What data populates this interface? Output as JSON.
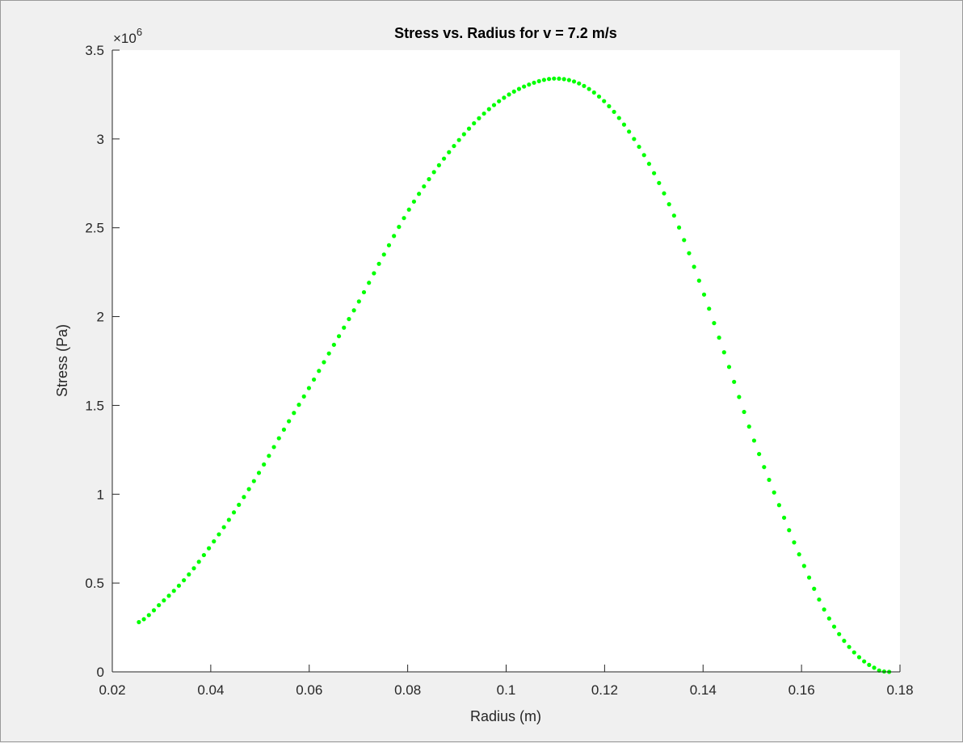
{
  "chart_data": {
    "type": "scatter",
    "title": "Stress vs. Radius for v = 7.2 m/s",
    "xlabel": "Radius (m)",
    "ylabel": "Stress (Pa)",
    "xlim": [
      0.02,
      0.18
    ],
    "ylim": [
      0,
      3.5
    ],
    "y_multiplier_label": "×10",
    "y_multiplier_exponent": "6",
    "x_ticks": [
      "0.02",
      "0.04",
      "0.06",
      "0.08",
      "0.1",
      "0.12",
      "0.14",
      "0.16",
      "0.18"
    ],
    "y_ticks": [
      "0",
      "0.5",
      "1",
      "1.5",
      "2",
      "2.5",
      "3",
      "3.5"
    ],
    "x_tick_values": [
      0.02,
      0.04,
      0.06,
      0.08,
      0.1,
      0.12,
      0.14,
      0.16,
      0.18
    ],
    "y_tick_values": [
      0,
      0.5,
      1,
      1.5,
      2,
      2.5,
      3,
      3.5
    ],
    "grid": false,
    "marker_color": "#00ff00",
    "series": [
      {
        "x_start": 0.0254,
        "x_end": 0.1778,
        "num_points": 151,
        "anchors": [
          [
            0.0254,
            0.28
          ],
          [
            0.03,
            0.39
          ],
          [
            0.035,
            0.53
          ],
          [
            0.04,
            0.71
          ],
          [
            0.045,
            0.91
          ],
          [
            0.05,
            1.13
          ],
          [
            0.055,
            1.37
          ],
          [
            0.06,
            1.6
          ],
          [
            0.065,
            1.84
          ],
          [
            0.07,
            2.08
          ],
          [
            0.075,
            2.34
          ],
          [
            0.08,
            2.59
          ],
          [
            0.085,
            2.8
          ],
          [
            0.09,
            2.98
          ],
          [
            0.095,
            3.13
          ],
          [
            0.1,
            3.24
          ],
          [
            0.105,
            3.31
          ],
          [
            0.11,
            3.34
          ],
          [
            0.115,
            3.31
          ],
          [
            0.12,
            3.21
          ],
          [
            0.125,
            3.04
          ],
          [
            0.13,
            2.81
          ],
          [
            0.135,
            2.51
          ],
          [
            0.14,
            2.14
          ],
          [
            0.145,
            1.74
          ],
          [
            0.15,
            1.33
          ],
          [
            0.155,
            0.97
          ],
          [
            0.16,
            0.63
          ],
          [
            0.165,
            0.33
          ],
          [
            0.17,
            0.13
          ],
          [
            0.175,
            0.02
          ],
          [
            0.1778,
            0.0
          ]
        ]
      }
    ]
  }
}
